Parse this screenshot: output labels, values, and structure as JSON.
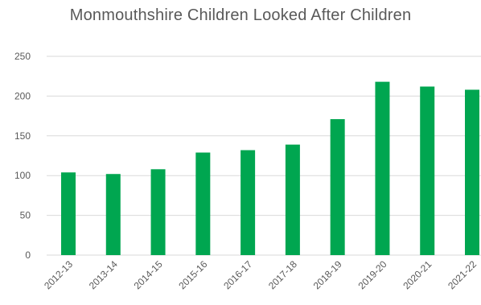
{
  "chart_data": {
    "type": "bar",
    "title": "Monmouthshire Children Looked After Children",
    "categories": [
      "2012-13",
      "2013-14",
      "2014-15",
      "2015-16",
      "2016-17",
      "2017-18",
      "2018-19",
      "2019-20",
      "2020-21",
      "2021-22"
    ],
    "values": [
      104,
      102,
      108,
      129,
      132,
      139,
      171,
      218,
      212,
      208
    ],
    "xlabel": "",
    "ylabel": "",
    "ylim": [
      0,
      250
    ],
    "yticks": [
      0,
      50,
      100,
      150,
      200,
      250
    ],
    "grid": true,
    "legend": "none",
    "colors": {
      "bar": "#00A650",
      "grid": "#D9D9D9",
      "text": "#595959"
    }
  }
}
